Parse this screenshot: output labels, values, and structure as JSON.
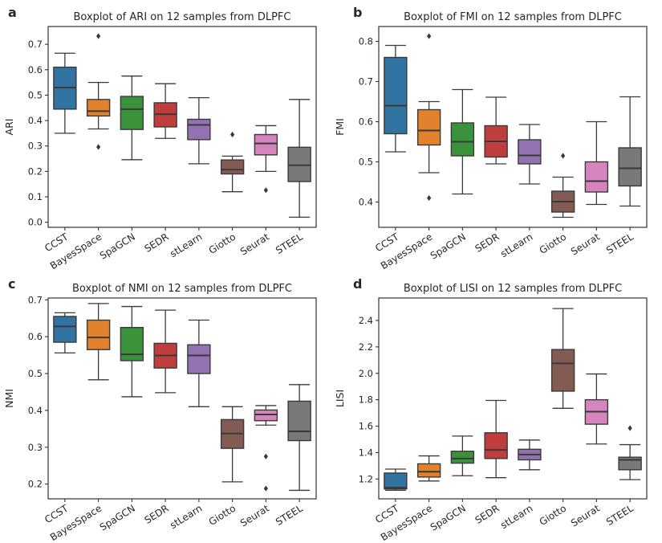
{
  "figure": {
    "background": "#ffffff",
    "text_color": "#262626",
    "spine_color": "#333333",
    "whisker_color": "#3a3a3a",
    "flier_color": "#3a3a3a"
  },
  "methods": [
    "CCST",
    "BayesSpace",
    "SpaGCN",
    "SEDR",
    "stLearn",
    "Giotto",
    "Seurat",
    "STEEL"
  ],
  "palette": [
    "#3274a1",
    "#e1812c",
    "#3a923a",
    "#c03d3e",
    "#9372b2",
    "#845b53",
    "#d684bd",
    "#797979"
  ],
  "chart_data": [
    {
      "type": "boxplot",
      "panel_label": "a",
      "title": "Boxplot of ARI on 12 samples from DLPFC",
      "ylabel": "ARI",
      "ylim": [
        -0.02,
        0.77
      ],
      "yticks": [
        0.0,
        0.1,
        0.2,
        0.3,
        0.4,
        0.5,
        0.6,
        0.7
      ],
      "grid": false,
      "categories": [
        "CCST",
        "BayesSpace",
        "SpaGCN",
        "SEDR",
        "stLearn",
        "Giotto",
        "Seurat",
        "STEEL"
      ],
      "stats": [
        {
          "whislo": 0.35,
          "q1": 0.445,
          "med": 0.53,
          "q3": 0.61,
          "whishi": 0.665,
          "fliers": []
        },
        {
          "whislo": 0.367,
          "q1": 0.418,
          "med": 0.437,
          "q3": 0.483,
          "whishi": 0.55,
          "fliers": [
            0.732,
            0.296
          ]
        },
        {
          "whislo": 0.246,
          "q1": 0.365,
          "med": 0.445,
          "q3": 0.495,
          "whishi": 0.575,
          "fliers": []
        },
        {
          "whislo": 0.33,
          "q1": 0.375,
          "med": 0.425,
          "q3": 0.47,
          "whishi": 0.545,
          "fliers": []
        },
        {
          "whislo": 0.23,
          "q1": 0.325,
          "med": 0.383,
          "q3": 0.405,
          "whishi": 0.49,
          "fliers": []
        },
        {
          "whislo": 0.12,
          "q1": 0.19,
          "med": 0.207,
          "q3": 0.245,
          "whishi": 0.26,
          "fliers": [
            0.345
          ]
        },
        {
          "whislo": 0.2,
          "q1": 0.265,
          "med": 0.31,
          "q3": 0.345,
          "whishi": 0.38,
          "fliers": [
            0.126
          ]
        },
        {
          "whislo": 0.02,
          "q1": 0.16,
          "med": 0.224,
          "q3": 0.295,
          "whishi": 0.483,
          "fliers": []
        }
      ]
    },
    {
      "type": "boxplot",
      "panel_label": "b",
      "title": "Boxplot of FMI on 12 samples from DLPFC",
      "ylabel": "FMI",
      "ylim": [
        0.337,
        0.837
      ],
      "yticks": [
        0.4,
        0.5,
        0.6,
        0.7,
        0.8
      ],
      "grid": false,
      "categories": [
        "CCST",
        "BayesSpace",
        "SpaGCN",
        "SEDR",
        "stLearn",
        "Giotto",
        "Seurat",
        "STEEL"
      ],
      "stats": [
        {
          "whislo": 0.525,
          "q1": 0.57,
          "med": 0.64,
          "q3": 0.76,
          "whishi": 0.79,
          "fliers": []
        },
        {
          "whislo": 0.473,
          "q1": 0.542,
          "med": 0.578,
          "q3": 0.63,
          "whishi": 0.65,
          "fliers": [
            0.813,
            0.41
          ]
        },
        {
          "whislo": 0.42,
          "q1": 0.515,
          "med": 0.55,
          "q3": 0.597,
          "whishi": 0.68,
          "fliers": []
        },
        {
          "whislo": 0.495,
          "q1": 0.512,
          "med": 0.551,
          "q3": 0.59,
          "whishi": 0.661,
          "fliers": []
        },
        {
          "whislo": 0.445,
          "q1": 0.495,
          "med": 0.516,
          "q3": 0.555,
          "whishi": 0.593,
          "fliers": []
        },
        {
          "whislo": 0.362,
          "q1": 0.375,
          "med": 0.401,
          "q3": 0.427,
          "whishi": 0.462,
          "fliers": [
            0.515
          ]
        },
        {
          "whislo": 0.394,
          "q1": 0.425,
          "med": 0.452,
          "q3": 0.5,
          "whishi": 0.6,
          "fliers": []
        },
        {
          "whislo": 0.39,
          "q1": 0.44,
          "med": 0.484,
          "q3": 0.535,
          "whishi": 0.662,
          "fliers": []
        }
      ]
    },
    {
      "type": "boxplot",
      "panel_label": "c",
      "title": "Boxplot of NMI on 12 samples from DLPFC",
      "ylabel": "NMI",
      "ylim": [
        0.16,
        0.705
      ],
      "yticks": [
        0.2,
        0.3,
        0.4,
        0.5,
        0.6,
        0.7
      ],
      "grid": false,
      "categories": [
        "CCST",
        "BayesSpace",
        "SpaGCN",
        "SEDR",
        "stLearn",
        "Giotto",
        "Seurat",
        "STEEL"
      ],
      "stats": [
        {
          "whislo": 0.556,
          "q1": 0.585,
          "med": 0.628,
          "q3": 0.655,
          "whishi": 0.665,
          "fliers": []
        },
        {
          "whislo": 0.483,
          "q1": 0.565,
          "med": 0.598,
          "q3": 0.645,
          "whishi": 0.69,
          "fliers": []
        },
        {
          "whislo": 0.437,
          "q1": 0.535,
          "med": 0.552,
          "q3": 0.625,
          "whishi": 0.682,
          "fliers": []
        },
        {
          "whislo": 0.448,
          "q1": 0.515,
          "med": 0.549,
          "q3": 0.582,
          "whishi": 0.672,
          "fliers": []
        },
        {
          "whislo": 0.41,
          "q1": 0.5,
          "med": 0.549,
          "q3": 0.578,
          "whishi": 0.645,
          "fliers": []
        },
        {
          "whislo": 0.206,
          "q1": 0.297,
          "med": 0.337,
          "q3": 0.375,
          "whishi": 0.41,
          "fliers": []
        },
        {
          "whislo": 0.36,
          "q1": 0.372,
          "med": 0.389,
          "q3": 0.401,
          "whishi": 0.413,
          "fliers": [
            0.275,
            0.188
          ]
        },
        {
          "whislo": 0.183,
          "q1": 0.318,
          "med": 0.343,
          "q3": 0.425,
          "whishi": 0.47,
          "fliers": []
        }
      ]
    },
    {
      "type": "boxplot",
      "panel_label": "d",
      "title": "Boxplot of LISI on 12 samples from DLPFC",
      "ylabel": "LISI",
      "ylim": [
        1.05,
        2.57
      ],
      "yticks": [
        1.2,
        1.4,
        1.6,
        1.8,
        2.0,
        2.2,
        2.4
      ],
      "grid": false,
      "categories": [
        "CCST",
        "BayesSpace",
        "SpaGCN",
        "SEDR",
        "stLearn",
        "Giotto",
        "Seurat",
        "STEEL"
      ],
      "stats": [
        {
          "whislo": 1.115,
          "q1": 1.125,
          "med": 1.135,
          "q3": 1.245,
          "whishi": 1.275,
          "fliers": []
        },
        {
          "whislo": 1.185,
          "q1": 1.215,
          "med": 1.255,
          "q3": 1.315,
          "whishi": 1.375,
          "fliers": []
        },
        {
          "whislo": 1.225,
          "q1": 1.32,
          "med": 1.355,
          "q3": 1.41,
          "whishi": 1.525,
          "fliers": []
        },
        {
          "whislo": 1.21,
          "q1": 1.355,
          "med": 1.42,
          "q3": 1.55,
          "whishi": 1.795,
          "fliers": []
        },
        {
          "whislo": 1.27,
          "q1": 1.345,
          "med": 1.385,
          "q3": 1.425,
          "whishi": 1.495,
          "fliers": []
        },
        {
          "whislo": 1.735,
          "q1": 1.865,
          "med": 2.075,
          "q3": 2.18,
          "whishi": 2.49,
          "fliers": []
        },
        {
          "whislo": 1.465,
          "q1": 1.615,
          "med": 1.71,
          "q3": 1.8,
          "whishi": 1.995,
          "fliers": []
        },
        {
          "whislo": 1.195,
          "q1": 1.27,
          "med": 1.345,
          "q3": 1.365,
          "whishi": 1.46,
          "fliers": [
            1.585
          ]
        }
      ]
    }
  ]
}
